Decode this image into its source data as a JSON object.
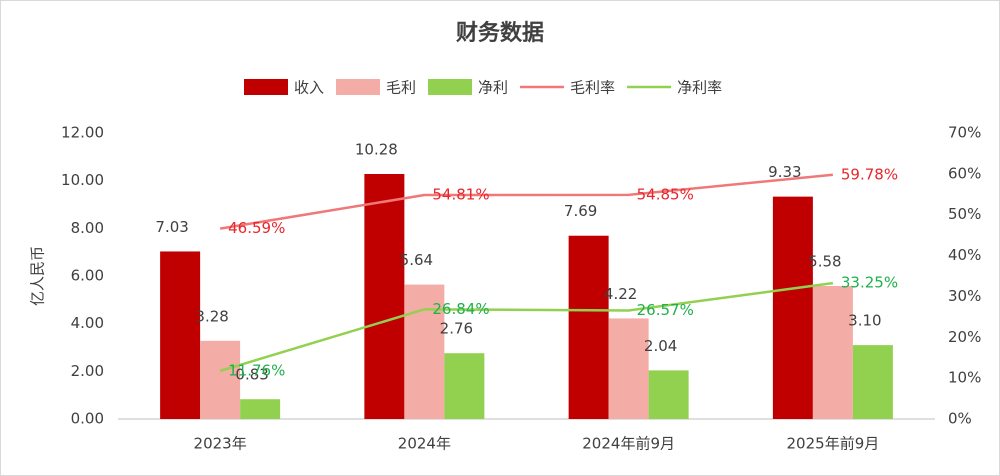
{
  "chart_data": {
    "type": "bar",
    "title": "财务数据",
    "y_label": "亿人民币",
    "categories": [
      "2023年",
      "2024年",
      "2024年前9月",
      "2025年前9月"
    ],
    "series": [
      {
        "name": "收入",
        "type": "bar",
        "color": "#c00000",
        "values": [
          7.03,
          10.28,
          7.69,
          9.33
        ],
        "value_labels": [
          "7.03",
          "10.28",
          "7.69",
          "9.33"
        ]
      },
      {
        "name": "毛利",
        "type": "bar",
        "color": "#f4aca6",
        "values": [
          3.28,
          5.64,
          4.22,
          5.58
        ],
        "value_labels": [
          "3.28",
          "5.64",
          "4.22",
          "5.58"
        ]
      },
      {
        "name": "净利",
        "type": "bar",
        "color": "#92d050",
        "values": [
          0.83,
          2.76,
          2.04,
          3.1
        ],
        "value_labels": [
          "0.83",
          "2.76",
          "2.04",
          "3.10"
        ]
      },
      {
        "name": "毛利率",
        "type": "line",
        "axis": "y2",
        "color": "#f07878",
        "label_color": "#e8262b",
        "values": [
          46.59,
          54.81,
          54.85,
          59.78
        ],
        "value_labels": [
          "46.59%",
          "54.81%",
          "54.85%",
          "59.78%"
        ]
      },
      {
        "name": "净利率",
        "type": "line",
        "axis": "y2",
        "color": "#92d050",
        "label_color": "#1fb04b",
        "values": [
          11.76,
          26.84,
          26.57,
          33.25
        ],
        "value_labels": [
          "11.76%",
          "26.84%",
          "26.57%",
          "33.25%"
        ]
      }
    ],
    "ylim": [
      0,
      12
    ],
    "yticks": [
      {
        "value": 0,
        "label": "0.00"
      },
      {
        "value": 2,
        "label": "2.00"
      },
      {
        "value": 4,
        "label": "4.00"
      },
      {
        "value": 6,
        "label": "6.00"
      },
      {
        "value": 8,
        "label": "8.00"
      },
      {
        "value": 10,
        "label": "10.00"
      },
      {
        "value": 12,
        "label": "12.00"
      }
    ],
    "y2lim": [
      0,
      70
    ],
    "y2ticks": [
      {
        "value": 0,
        "label": "0%"
      },
      {
        "value": 10,
        "label": "10%"
      },
      {
        "value": 20,
        "label": "20%"
      },
      {
        "value": 30,
        "label": "30%"
      },
      {
        "value": 40,
        "label": "40%"
      },
      {
        "value": 50,
        "label": "50%"
      },
      {
        "value": 60,
        "label": "60%"
      },
      {
        "value": 70,
        "label": "70%"
      }
    ],
    "grid": false,
    "legend": "top"
  }
}
